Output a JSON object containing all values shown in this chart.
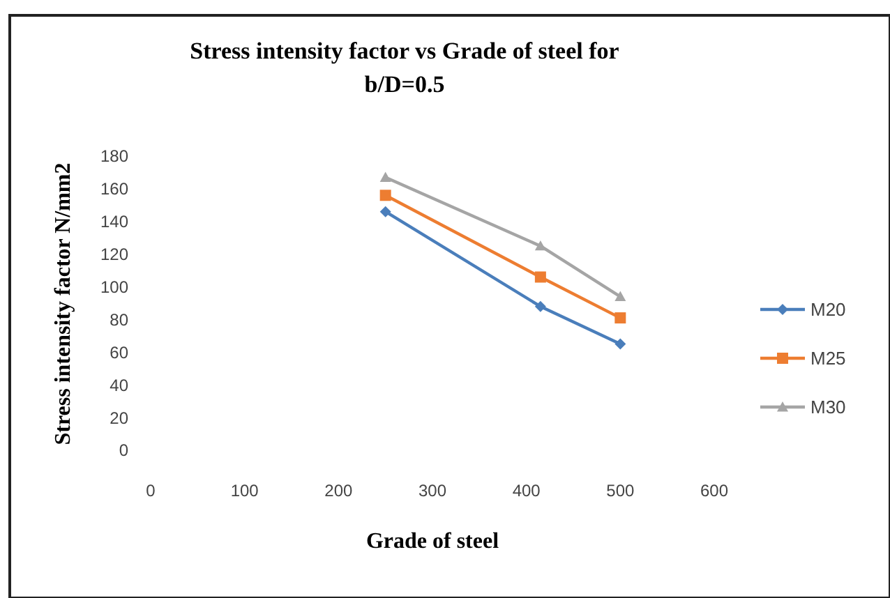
{
  "chart_data": {
    "type": "line",
    "title": "Stress intensity factor vs Grade of steel for b/D=0.5",
    "xlabel": "Grade of steel",
    "ylabel": "Stress intensity factor N/mm2",
    "x": [
      250,
      415,
      500
    ],
    "series": [
      {
        "name": "M20",
        "color": "#4a7ebb",
        "values": [
          146,
          88,
          65
        ],
        "marker": "diamond"
      },
      {
        "name": "M25",
        "color": "#ed7d31",
        "values": [
          156,
          106,
          81
        ],
        "marker": "square"
      },
      {
        "name": "M30",
        "color": "#a5a5a5",
        "values": [
          167,
          125,
          94
        ],
        "marker": "triangle"
      }
    ],
    "xlim": [
      0,
      600
    ],
    "xticks": [
      0,
      100,
      200,
      300,
      400,
      500,
      600
    ],
    "ylim": [
      0,
      180
    ],
    "yticks": [
      0,
      20,
      40,
      60,
      80,
      100,
      120,
      140,
      160,
      180
    ],
    "grid": false,
    "legend": "right"
  }
}
